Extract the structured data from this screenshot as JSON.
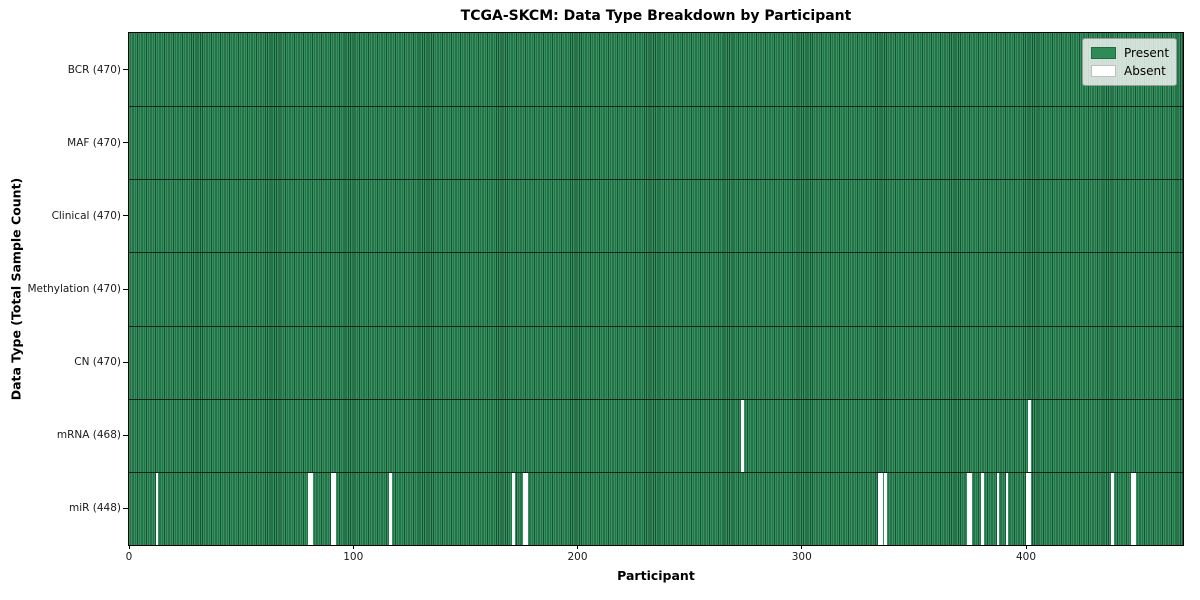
{
  "figure": {
    "title": "TCGA-SKCM: Data Type Breakdown by Participant"
  },
  "chart_data": {
    "type": "heatmap",
    "title": "TCGA-SKCM: Data Type Breakdown by Participant",
    "xlabel": "Participant",
    "ylabel": "Data Type (Total Sample Count)",
    "x_range": [
      0,
      470
    ],
    "total_participants": 470,
    "x_ticks": [
      "0",
      "100",
      "200",
      "300",
      "400"
    ],
    "x_tick_values": [
      0,
      100,
      200,
      300,
      400
    ],
    "grid": false,
    "legend_position": "upper right",
    "legend": [
      {
        "label": "Present",
        "color": "#2e8b57"
      },
      {
        "label": "Absent",
        "color": "#ffffff"
      }
    ],
    "rows": [
      {
        "name": "BCR",
        "tick_label": "BCR (470)",
        "present_count": 470,
        "absent_participants": []
      },
      {
        "name": "MAF",
        "tick_label": "MAF (470)",
        "present_count": 470,
        "absent_participants": []
      },
      {
        "name": "Clinical",
        "tick_label": "Clinical (470)",
        "present_count": 470,
        "absent_participants": []
      },
      {
        "name": "Methylation",
        "tick_label": "Methylation (470)",
        "present_count": 470,
        "absent_participants": []
      },
      {
        "name": "CN",
        "tick_label": "CN (470)",
        "present_count": 470,
        "absent_participants": []
      },
      {
        "name": "mRNA",
        "tick_label": "mRNA (468)",
        "present_count": 468,
        "absent_participants": [
          273,
          401
        ]
      },
      {
        "name": "miR",
        "tick_label": "miR (448)",
        "present_count": 448,
        "absent_participants": [
          12,
          80,
          81,
          90,
          91,
          116,
          171,
          176,
          177,
          334,
          335,
          337,
          374,
          375,
          380,
          387,
          391,
          400,
          401,
          438,
          447,
          448
        ]
      }
    ]
  },
  "colors": {
    "present": "#2e8b57",
    "absent": "#ffffff"
  }
}
